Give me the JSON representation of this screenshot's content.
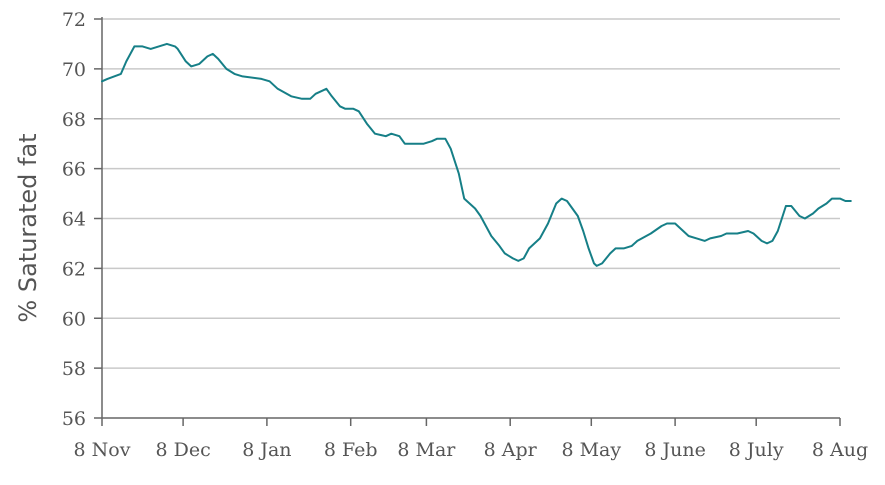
{
  "chart_data": {
    "type": "line",
    "title": "",
    "xlabel": "",
    "ylabel": "% Saturated fat",
    "ylim": [
      56,
      72
    ],
    "y_ticks": [
      56,
      58,
      60,
      62,
      64,
      66,
      68,
      70,
      72
    ],
    "x_range": [
      "2022-11-08",
      "2023-08-08"
    ],
    "x_tick_dates": [
      "2022-11-08",
      "2022-12-08",
      "2023-01-08",
      "2023-02-08",
      "2023-03-08",
      "2023-04-08",
      "2023-05-08",
      "2023-06-08",
      "2023-07-08",
      "2023-08-08"
    ],
    "x_tick_labels": [
      "8 Nov",
      "8 Dec",
      "8 Jan",
      "8 Feb",
      "8 Mar",
      "8 Apr",
      "8 May",
      "8 June",
      "8 July",
      "8 Aug"
    ],
    "grid": true,
    "legend": "none",
    "colors": {
      "line": "#167f87",
      "grid": "#c9c9c9",
      "axis": "#666666",
      "text": "#555555"
    },
    "series": [
      {
        "x": [
          "2022-11-08",
          "2022-11-10",
          "2022-11-15",
          "2022-11-17",
          "2022-11-20",
          "2022-11-23",
          "2022-11-26",
          "2022-11-29",
          "2022-12-02",
          "2022-12-05",
          "2022-12-06",
          "2022-12-09",
          "2022-12-11",
          "2022-12-14",
          "2022-12-17",
          "2022-12-19",
          "2022-12-21",
          "2022-12-24",
          "2022-12-27",
          "2022-12-30",
          "2023-01-06",
          "2023-01-09",
          "2023-01-12",
          "2023-01-17",
          "2023-01-21",
          "2023-01-24",
          "2023-01-26",
          "2023-01-30",
          "2023-02-01",
          "2023-02-04",
          "2023-02-06",
          "2023-02-09",
          "2023-02-11",
          "2023-02-14",
          "2023-02-17",
          "2023-02-21",
          "2023-02-23",
          "2023-02-26",
          "2023-02-28",
          "2023-03-02",
          "2023-03-04",
          "2023-03-07",
          "2023-03-10",
          "2023-03-12",
          "2023-03-15",
          "2023-03-17",
          "2023-03-20",
          "2023-03-22",
          "2023-03-26",
          "2023-03-28",
          "2023-03-30",
          "2023-04-01",
          "2023-04-04",
          "2023-04-06",
          "2023-04-09",
          "2023-04-11",
          "2023-04-13",
          "2023-04-15",
          "2023-04-19",
          "2023-04-22",
          "2023-04-25",
          "2023-04-27",
          "2023-04-29",
          "2023-05-03",
          "2023-05-05",
          "2023-05-07",
          "2023-05-09",
          "2023-05-10",
          "2023-05-12",
          "2023-05-15",
          "2023-05-17",
          "2023-05-20",
          "2023-05-23",
          "2023-05-25",
          "2023-05-30",
          "2023-06-03",
          "2023-06-05",
          "2023-06-08",
          "2023-06-11",
          "2023-06-13",
          "2023-06-16",
          "2023-06-19",
          "2023-06-21",
          "2023-06-25",
          "2023-06-27",
          "2023-07-01",
          "2023-07-05",
          "2023-07-07",
          "2023-07-10",
          "2023-07-12",
          "2023-07-14",
          "2023-07-16",
          "2023-07-19",
          "2023-07-21",
          "2023-07-24",
          "2023-07-26",
          "2023-07-29",
          "2023-07-31",
          "2023-08-03",
          "2023-08-05",
          "2023-08-08",
          "2023-08-10",
          "2023-08-12"
        ],
        "y": [
          69.5,
          69.6,
          69.8,
          70.3,
          70.9,
          70.9,
          70.8,
          70.9,
          71.0,
          70.9,
          70.8,
          70.3,
          70.1,
          70.2,
          70.5,
          70.6,
          70.4,
          70.0,
          69.8,
          69.7,
          69.6,
          69.5,
          69.2,
          68.9,
          68.8,
          68.8,
          69.0,
          69.2,
          68.9,
          68.5,
          68.4,
          68.4,
          68.3,
          67.8,
          67.4,
          67.3,
          67.4,
          67.3,
          67.0,
          67.0,
          67.0,
          67.0,
          67.1,
          67.2,
          67.2,
          66.8,
          65.8,
          64.8,
          64.4,
          64.1,
          63.7,
          63.3,
          62.9,
          62.6,
          62.4,
          62.3,
          62.4,
          62.8,
          63.2,
          63.8,
          64.6,
          64.8,
          64.7,
          64.1,
          63.5,
          62.8,
          62.2,
          62.1,
          62.2,
          62.6,
          62.8,
          62.8,
          62.9,
          63.1,
          63.4,
          63.7,
          63.8,
          63.8,
          63.5,
          63.3,
          63.2,
          63.1,
          63.2,
          63.3,
          63.4,
          63.4,
          63.5,
          63.4,
          63.1,
          63.0,
          63.1,
          63.5,
          64.5,
          64.5,
          64.1,
          64.0,
          64.2,
          64.4,
          64.6,
          64.8,
          64.8,
          64.7,
          64.7
        ]
      }
    ]
  }
}
